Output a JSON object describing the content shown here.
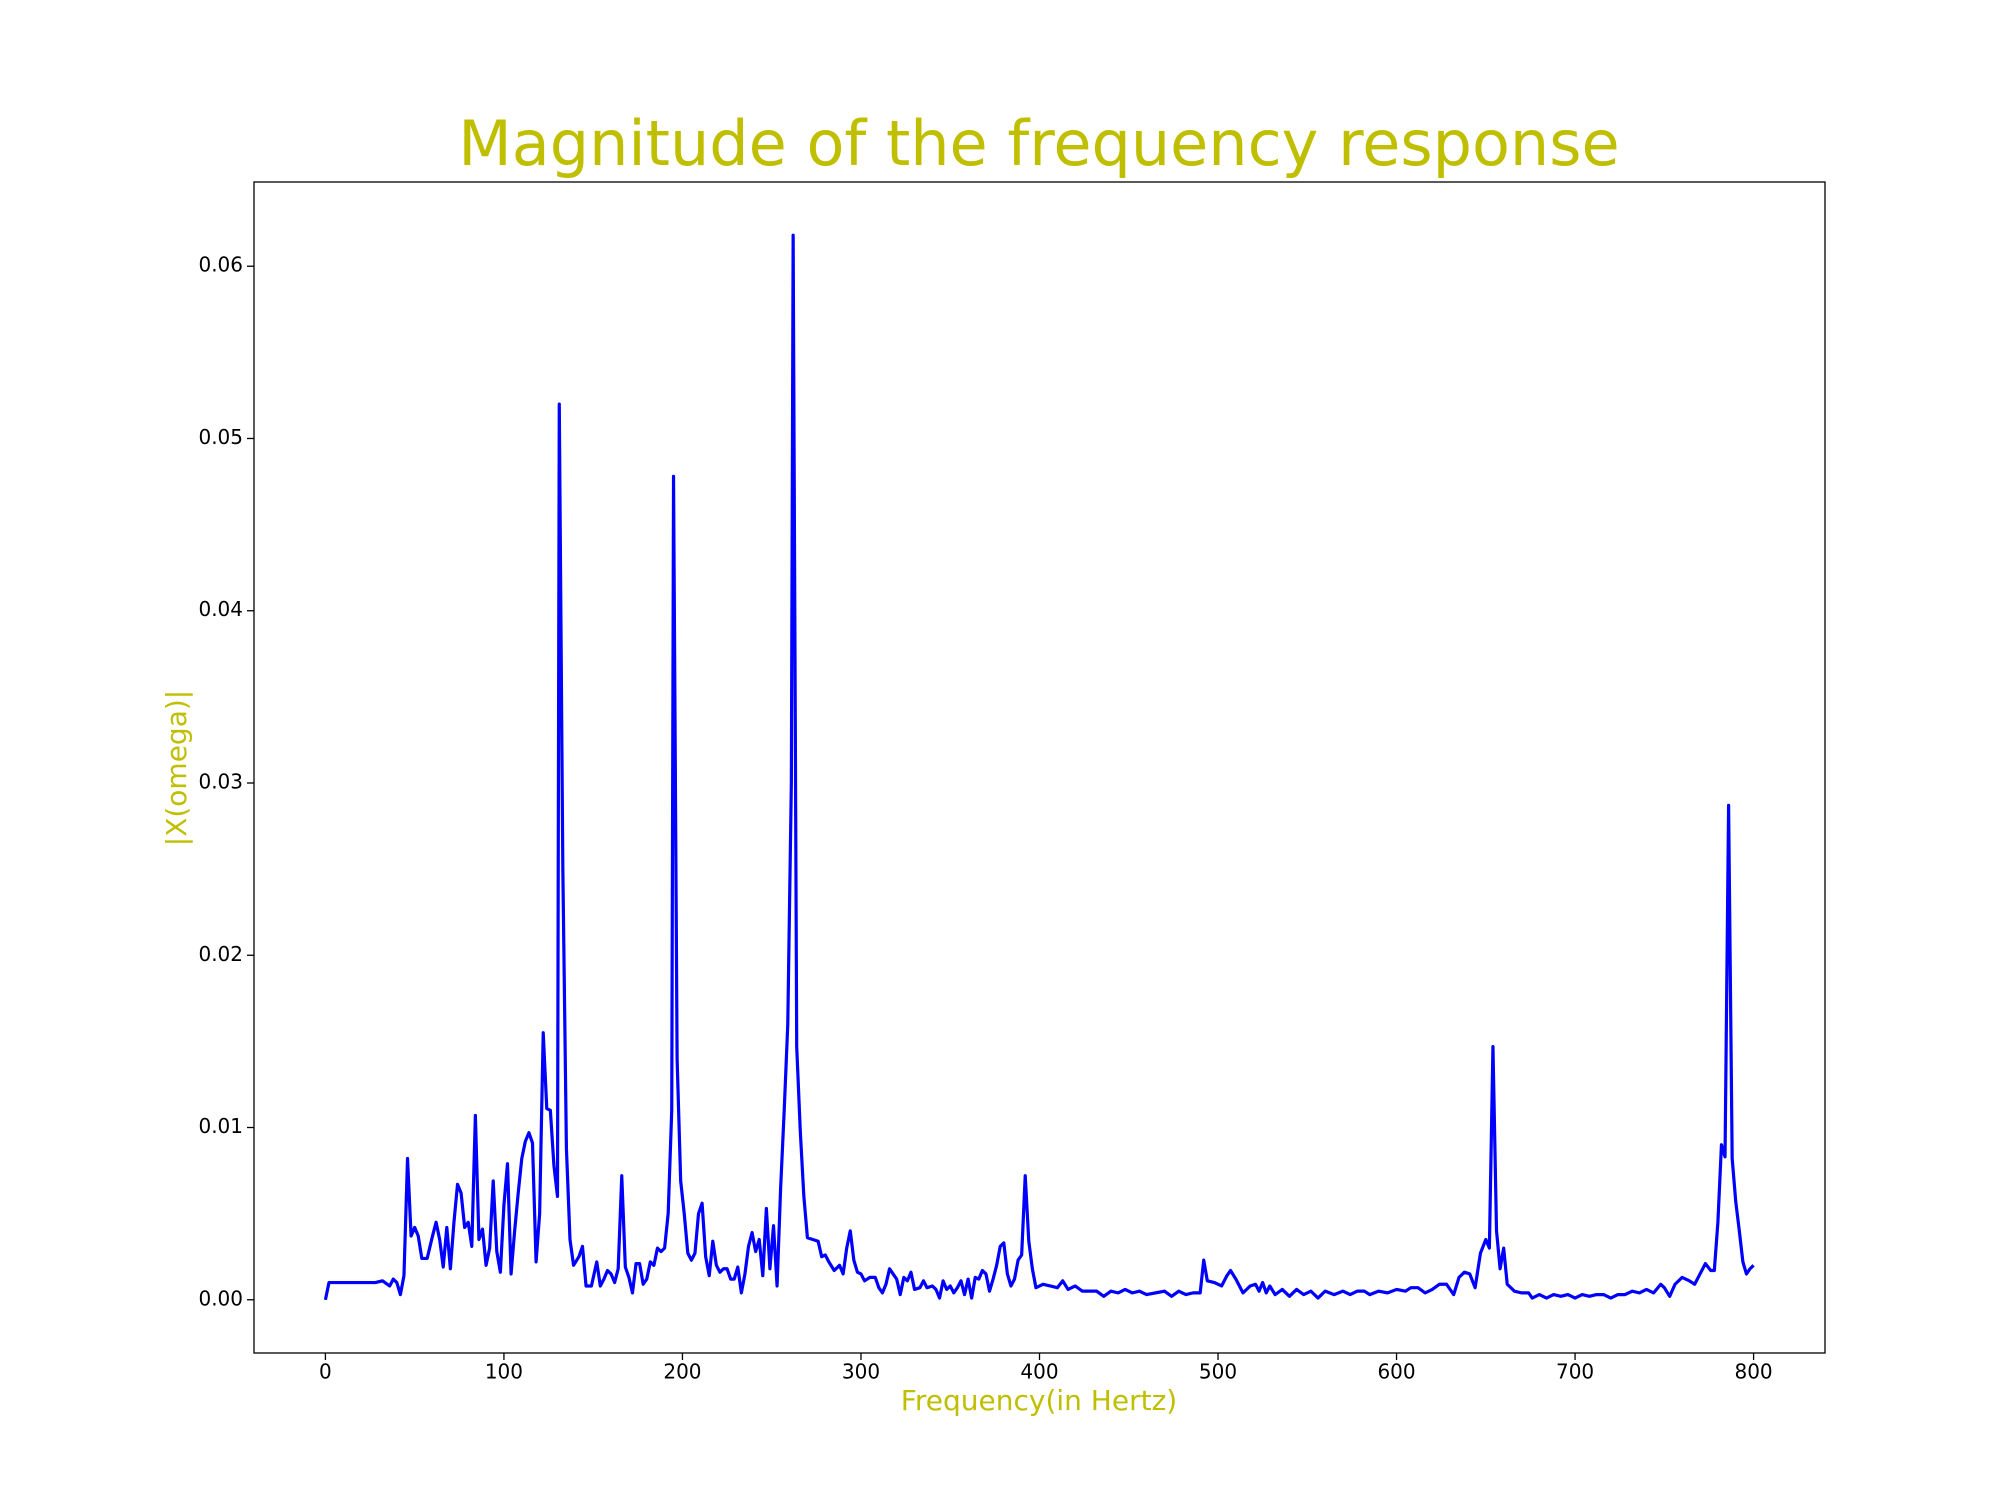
{
  "chart_data": {
    "type": "line",
    "title": "Magnitude of the frequency response",
    "x_label": "Frequency(in Hertz)",
    "y_label": "|X(omega)|",
    "xlim": [
      -40,
      840
    ],
    "xticks": [
      0,
      100,
      200,
      300,
      400,
      500,
      600,
      700,
      800
    ],
    "ylim": [
      -0.00309,
      0.06489
    ],
    "yticks": [
      {
        "value": 0,
        "label": "0.00"
      },
      {
        "value": 0.01,
        "label": "0.01"
      },
      {
        "value": 0.02,
        "label": "0.02"
      },
      {
        "value": 0.03,
        "label": "0.03"
      },
      {
        "value": 0.04,
        "label": "0.04"
      },
      {
        "value": 0.05,
        "label": "0.05"
      },
      {
        "value": 0.06,
        "label": "0.06"
      }
    ],
    "grid": false,
    "series": [
      {
        "color": "#0000ff",
        "x": [
          0,
          2,
          28,
          32,
          36,
          38,
          40,
          42,
          44,
          46,
          48,
          50,
          52,
          54,
          57,
          60,
          62,
          64,
          66,
          68,
          70,
          72,
          74,
          76,
          78,
          80,
          82,
          84,
          86,
          88,
          90,
          92,
          94,
          96,
          98,
          100,
          102,
          104,
          106,
          108,
          110,
          112,
          114,
          116,
          118,
          120,
          122,
          124,
          126,
          128,
          130,
          131,
          133,
          135,
          137,
          139,
          142,
          144,
          146,
          149,
          152,
          154,
          156,
          158,
          160,
          162,
          164,
          166,
          168,
          170,
          172,
          174,
          176,
          178,
          180,
          182,
          184,
          186,
          188,
          190,
          192,
          194,
          195,
          197,
          199,
          201,
          203,
          205,
          207,
          209,
          211,
          213,
          215,
          217,
          219,
          221,
          223,
          225,
          227,
          229,
          231,
          233,
          235,
          237,
          239,
          241,
          243,
          245,
          247,
          249,
          251,
          253,
          255,
          257,
          259,
          261,
          262,
          264,
          266,
          268,
          270,
          273,
          276,
          278,
          280,
          282,
          285,
          288,
          290,
          292,
          294,
          296,
          298,
          300,
          302,
          305,
          308,
          310,
          312,
          314,
          316,
          318,
          320,
          322,
          324,
          326,
          328,
          330,
          333,
          335,
          337,
          340,
          342,
          344,
          346,
          348,
          350,
          352,
          354,
          356,
          358,
          360,
          362,
          364,
          366,
          368,
          370,
          372,
          374,
          376,
          378,
          380,
          382,
          384,
          386,
          388,
          390,
          392,
          394,
          396,
          398,
          402,
          406,
          410,
          413,
          416,
          420,
          424,
          428,
          432,
          436,
          440,
          444,
          448,
          452,
          456,
          460,
          465,
          470,
          474,
          478,
          482,
          486,
          490,
          492,
          494,
          498,
          502,
          505,
          507,
          510,
          514,
          518,
          521,
          523,
          525,
          527,
          529,
          532,
          536,
          540,
          544,
          548,
          552,
          556,
          560,
          565,
          570,
          574,
          578,
          582,
          585,
          590,
          595,
          600,
          605,
          608,
          612,
          616,
          620,
          624,
          628,
          632,
          635,
          638,
          641,
          644,
          647,
          650,
          652,
          654,
          656,
          658,
          660,
          662,
          666,
          670,
          674,
          676,
          680,
          684,
          688,
          692,
          696,
          700,
          704,
          708,
          712,
          716,
          720,
          724,
          728,
          732,
          736,
          740,
          744,
          748,
          750,
          753,
          756,
          760,
          764,
          767,
          770,
          773,
          776,
          778,
          780,
          782,
          784,
          786,
          788,
          790,
          792,
          794,
          796,
          798,
          800
        ],
        "values": [
          0,
          0.001,
          0.001,
          0.0011,
          0.0008,
          0.0012,
          0.001,
          0.0003,
          0.0014,
          0.0082,
          0.0037,
          0.0042,
          0.0037,
          0.0024,
          0.0024,
          0.0037,
          0.0045,
          0.0035,
          0.0019,
          0.0042,
          0.0018,
          0.0045,
          0.0067,
          0.0062,
          0.0042,
          0.0045,
          0.0031,
          0.0107,
          0.0035,
          0.0041,
          0.002,
          0.003,
          0.0069,
          0.0028,
          0.0016,
          0.0055,
          0.0079,
          0.0015,
          0.004,
          0.0062,
          0.0082,
          0.0092,
          0.0097,
          0.0091,
          0.0022,
          0.005,
          0.0155,
          0.0111,
          0.011,
          0.0078,
          0.006,
          0.052,
          0.025,
          0.0088,
          0.0035,
          0.002,
          0.0025,
          0.0031,
          0.0008,
          0.0008,
          0.0022,
          0.0008,
          0.0012,
          0.0017,
          0.0015,
          0.001,
          0.0018,
          0.0072,
          0.0019,
          0.0013,
          0.0004,
          0.0021,
          0.0021,
          0.0009,
          0.0012,
          0.0022,
          0.002,
          0.003,
          0.0028,
          0.003,
          0.005,
          0.011,
          0.0478,
          0.014,
          0.0069,
          0.005,
          0.0027,
          0.0023,
          0.0027,
          0.005,
          0.0056,
          0.0025,
          0.0014,
          0.0034,
          0.002,
          0.0016,
          0.0018,
          0.0018,
          0.0012,
          0.0012,
          0.0019,
          0.0004,
          0.0015,
          0.0031,
          0.0039,
          0.0028,
          0.0035,
          0.0014,
          0.0053,
          0.0018,
          0.0043,
          0.0008,
          0.0065,
          0.011,
          0.016,
          0.03,
          0.0618,
          0.0147,
          0.0098,
          0.006,
          0.0036,
          0.0035,
          0.0034,
          0.0025,
          0.0026,
          0.0022,
          0.0017,
          0.002,
          0.0015,
          0.003,
          0.004,
          0.0023,
          0.0016,
          0.0015,
          0.0011,
          0.0013,
          0.0013,
          0.0007,
          0.0004,
          0.0009,
          0.0018,
          0.0015,
          0.0012,
          0.0003,
          0.0013,
          0.0011,
          0.0016,
          0.0006,
          0.0007,
          0.0011,
          0.0007,
          0.0008,
          0.0006,
          0.0001,
          0.0011,
          0.0006,
          0.0008,
          0.0004,
          0.0007,
          0.0011,
          0.0003,
          0.0012,
          0.0001,
          0.0013,
          0.0012,
          0.0017,
          0.0015,
          0.0005,
          0.0012,
          0.002,
          0.0031,
          0.0033,
          0.0015,
          0.0008,
          0.0012,
          0.0023,
          0.0026,
          0.0072,
          0.0034,
          0.0018,
          0.0007,
          0.0009,
          0.0008,
          0.0007,
          0.0011,
          0.0006,
          0.0008,
          0.0005,
          0.0005,
          0.0005,
          0.0002,
          0.0005,
          0.0004,
          0.0006,
          0.0004,
          0.0005,
          0.0003,
          0.0004,
          0.0005,
          0.0002,
          0.0005,
          0.0003,
          0.0004,
          0.0004,
          0.0023,
          0.0011,
          0.001,
          0.0008,
          0.0014,
          0.0017,
          0.0012,
          0.0004,
          0.0008,
          0.0009,
          0.0005,
          0.001,
          0.0004,
          0.0008,
          0.0003,
          0.0006,
          0.0002,
          0.0006,
          0.0003,
          0.0005,
          0.0001,
          0.0005,
          0.0003,
          0.0005,
          0.0003,
          0.0005,
          0.0005,
          0.0003,
          0.0005,
          0.0004,
          0.0006,
          0.0005,
          0.0007,
          0.0007,
          0.0004,
          0.0006,
          0.0009,
          0.0009,
          0.0003,
          0.0013,
          0.0016,
          0.0015,
          0.0007,
          0.0027,
          0.0035,
          0.003,
          0.0147,
          0.004,
          0.0018,
          0.003,
          0.0009,
          0.0005,
          0.0004,
          0.0004,
          0.0001,
          0.0003,
          0.0001,
          0.0003,
          0.0002,
          0.0003,
          0.0001,
          0.0003,
          0.0002,
          0.0003,
          0.0003,
          0.0001,
          0.0003,
          0.0003,
          0.0005,
          0.0004,
          0.0006,
          0.0004,
          0.0009,
          0.0007,
          0.0002,
          0.0009,
          0.0013,
          0.0011,
          0.0009,
          0.0015,
          0.0021,
          0.0017,
          0.0017,
          0.0045,
          0.009,
          0.0083,
          0.0287,
          0.0082,
          0.0057,
          0.004,
          0.0022,
          0.0015,
          0.0018,
          0.002
        ]
      }
    ]
  }
}
